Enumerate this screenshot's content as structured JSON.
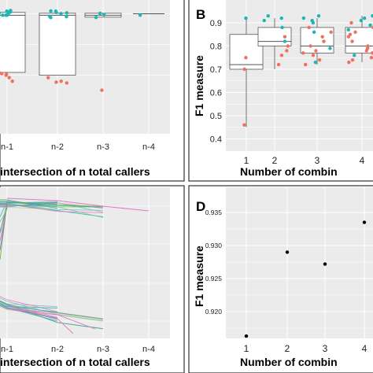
{
  "colors": {
    "panel_bg": "#ebebeb",
    "grid": "#ffffff",
    "teal": "#1bb5b5",
    "red": "#f0705f",
    "frame": "#333333"
  },
  "panels": {
    "A": {
      "xlabel": "intersection of n total callers",
      "categories": [
        "n-1",
        "n-2",
        "n-3",
        "n-4"
      ]
    },
    "B": {
      "label": "B",
      "ylabel": "F1 measure",
      "xlabel": "Number of combin",
      "ticks": [
        "0.9",
        "0.8",
        "0.7",
        "0.6",
        "0.5",
        "0.4"
      ],
      "xticks": [
        "1",
        "2",
        "3",
        "4"
      ]
    },
    "C": {
      "xlabel": "intersection of n total callers",
      "categories": [
        "n-1",
        "n-2",
        "n-3",
        "n-4"
      ]
    },
    "D": {
      "label": "D",
      "ylabel": "F1 measure",
      "xlabel": "Number of combin",
      "ticks": [
        "0.935",
        "0.930",
        "0.925",
        "0.920"
      ],
      "xticks": [
        "1",
        "2",
        "3",
        "4"
      ]
    }
  },
  "chart_data": [
    {
      "panel": "A",
      "type": "box",
      "categories": [
        "n-1",
        "n-2",
        "n-3",
        "n-4"
      ],
      "series": [
        {
          "name": "",
          "color": "teal",
          "values": [
            [
              0.97,
              0.96,
              0.955,
              0.95,
              0.965,
              0.958,
              0.962,
              0.952,
              0.968,
              0.96
            ],
            [
              0.965,
              0.955,
              0.95,
              0.96,
              0.97,
              0.958,
              0.952,
              0.962
            ],
            [
              0.955,
              0.95,
              0.96
            ],
            [
              0.96
            ]
          ]
        },
        {
          "name": "",
          "color": "red",
          "values": [
            [
              0.75,
              0.74,
              0.73,
              0.72,
              0.745,
              0.735
            ],
            [
              0.73,
              0.72,
              0.71,
              0.715
            ],
            [
              0.69
            ],
            []
          ]
        }
      ]
    },
    {
      "panel": "B",
      "type": "box",
      "categories": [
        "1",
        "2",
        "3",
        "4"
      ],
      "ylim": [
        0.4,
        0.93
      ],
      "boxes": [
        {
          "min": 0.45,
          "q1": 0.7,
          "median": 0.72,
          "q3": 0.85,
          "max": 0.92
        },
        {
          "min": 0.7,
          "q1": 0.8,
          "median": 0.82,
          "q3": 0.88,
          "max": 0.92
        },
        {
          "min": 0.72,
          "q1": 0.77,
          "median": 0.8,
          "q3": 0.88,
          "max": 0.92
        },
        {
          "min": 0.73,
          "q1": 0.77,
          "median": 0.8,
          "q3": 0.88,
          "max": 0.93
        }
      ]
    },
    {
      "panel": "C",
      "type": "line",
      "categories": [
        "n-1",
        "n-2",
        "n-3",
        "n-4"
      ]
    },
    {
      "panel": "D",
      "type": "scatter",
      "x": [
        1,
        2,
        3,
        4
      ],
      "y": [
        0.9163,
        0.929,
        0.9272,
        0.9335
      ],
      "ylim": [
        0.915,
        0.937
      ]
    }
  ]
}
